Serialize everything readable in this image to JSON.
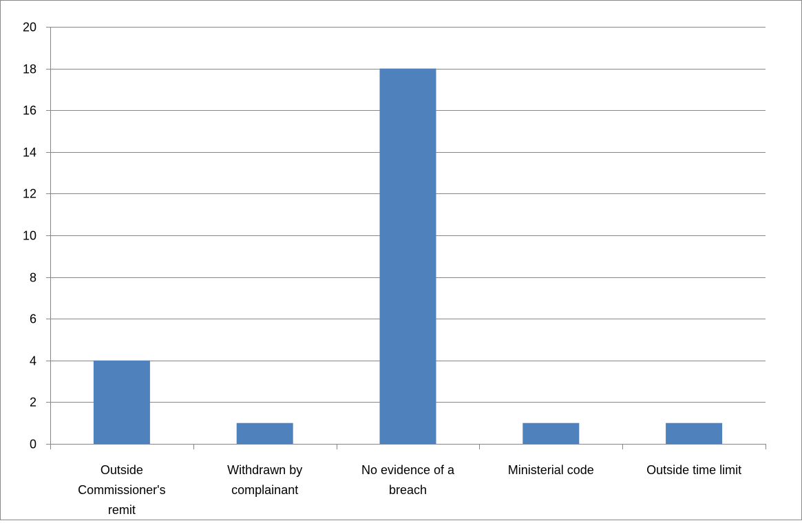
{
  "chart_data": {
    "type": "bar",
    "title": "",
    "xlabel": "",
    "ylabel": "",
    "categories": [
      [
        "Outside",
        "Commissioner's",
        "remit"
      ],
      [
        "Withdrawn by",
        "complainant"
      ],
      [
        "No evidence of a",
        "breach"
      ],
      [
        "Ministerial code"
      ],
      [
        "Outside time limit"
      ]
    ],
    "values": [
      4,
      1,
      18,
      1,
      1
    ],
    "ylim": [
      0,
      20
    ],
    "yticks": [
      0,
      2,
      4,
      6,
      8,
      10,
      12,
      14,
      16,
      18,
      20
    ],
    "grid": true,
    "legend": "none",
    "bar_color": "#4F81BD",
    "gridline_color": "#868686",
    "axis_color": "#868686"
  }
}
